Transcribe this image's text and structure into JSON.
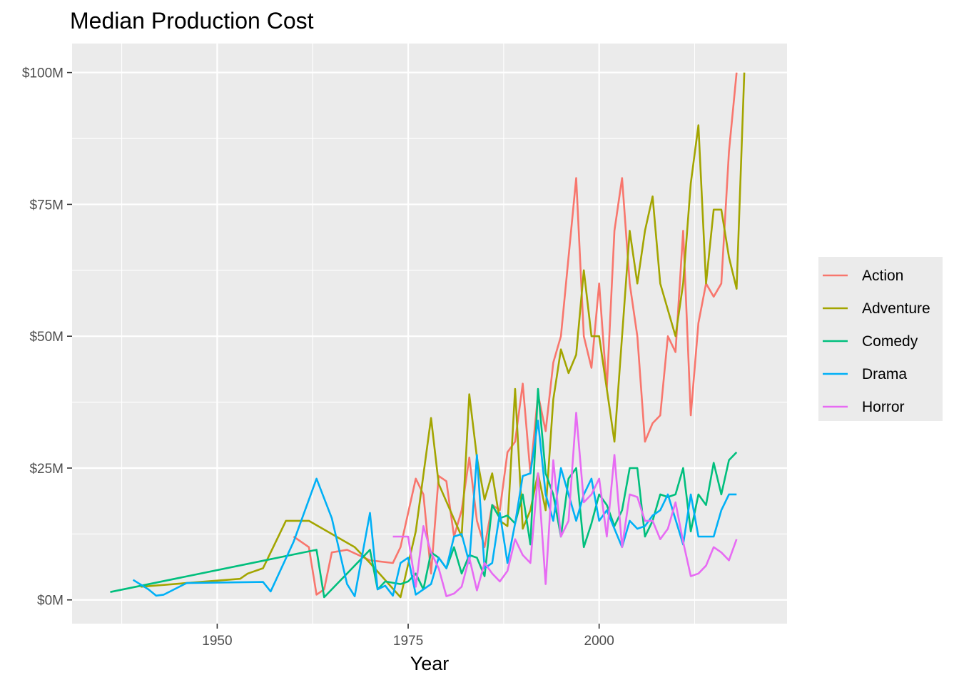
{
  "chart_data": {
    "type": "line",
    "title": "Median Production Cost",
    "xlabel": "Year",
    "ylabel": "",
    "xlim": [
      1931,
      2024.6
    ],
    "ylim": [
      -4.5,
      105.5
    ],
    "x_ticks": [
      1950,
      1975,
      2000
    ],
    "x_minor_ticks": [
      1937.5,
      1962.5,
      1987.5,
      2012.5
    ],
    "y_ticks": [
      0,
      25,
      50,
      75,
      100
    ],
    "y_tick_labels": [
      "$0M",
      "$25M",
      "$50M",
      "$75M",
      "$100M"
    ],
    "y_minor_ticks": [
      12.5,
      37.5,
      62.5,
      87.5
    ],
    "grid": true,
    "legend": "right",
    "series": [
      {
        "name": "Action",
        "color": "#F8766D",
        "points": [
          [
            1960,
            12
          ],
          [
            1962,
            10
          ],
          [
            1963,
            1
          ],
          [
            1964,
            2
          ],
          [
            1965,
            9
          ],
          [
            1967,
            9.5
          ],
          [
            1970,
            7.5
          ],
          [
            1973,
            7
          ],
          [
            1974,
            10
          ],
          [
            1976,
            23
          ],
          [
            1977,
            20
          ],
          [
            1978,
            5
          ],
          [
            1979,
            23.5
          ],
          [
            1980,
            22.5
          ],
          [
            1981,
            12
          ],
          [
            1982,
            17
          ],
          [
            1983,
            27
          ],
          [
            1984,
            15
          ],
          [
            1985,
            10
          ],
          [
            1986,
            18
          ],
          [
            1987,
            17
          ],
          [
            1988,
            28
          ],
          [
            1989,
            30
          ],
          [
            1990,
            41
          ],
          [
            1991,
            24
          ],
          [
            1992,
            39
          ],
          [
            1993,
            32
          ],
          [
            1994,
            45
          ],
          [
            1995,
            50
          ],
          [
            1996,
            65
          ],
          [
            1997,
            80
          ],
          [
            1998,
            50
          ],
          [
            1999,
            44
          ],
          [
            2000,
            60
          ],
          [
            2001,
            40
          ],
          [
            2002,
            70
          ],
          [
            2003,
            80
          ],
          [
            2004,
            60
          ],
          [
            2005,
            50
          ],
          [
            2006,
            30
          ],
          [
            2007,
            33.5
          ],
          [
            2008,
            35
          ],
          [
            2009,
            50
          ],
          [
            2010,
            47
          ],
          [
            2011,
            70
          ],
          [
            2012,
            35
          ],
          [
            2013,
            52.5
          ],
          [
            2014,
            60
          ],
          [
            2015,
            57.5
          ],
          [
            2016,
            60
          ],
          [
            2017,
            85
          ],
          [
            2018,
            100
          ]
        ]
      },
      {
        "name": "Adventure",
        "color": "#A3A500",
        "points": [
          [
            1940,
            2.5
          ],
          [
            1946,
            3.2
          ],
          [
            1953,
            4
          ],
          [
            1954,
            5
          ],
          [
            1956,
            6
          ],
          [
            1959,
            15
          ],
          [
            1962,
            15
          ],
          [
            1968,
            10
          ],
          [
            1970,
            7
          ],
          [
            1974,
            0.5
          ],
          [
            1976,
            13
          ],
          [
            1978,
            34.5
          ],
          [
            1979,
            22
          ],
          [
            1982,
            12
          ],
          [
            1983,
            39
          ],
          [
            1984,
            27
          ],
          [
            1985,
            19
          ],
          [
            1986,
            24
          ],
          [
            1987,
            15
          ],
          [
            1988,
            14
          ],
          [
            1989,
            40
          ],
          [
            1990,
            13.5
          ],
          [
            1991,
            17
          ],
          [
            1992,
            24
          ],
          [
            1993,
            17
          ],
          [
            1994,
            38
          ],
          [
            1995,
            47.5
          ],
          [
            1996,
            43
          ],
          [
            1997,
            46.5
          ],
          [
            1998,
            62.5
          ],
          [
            1999,
            50
          ],
          [
            2000,
            50
          ],
          [
            2001,
            40
          ],
          [
            2002,
            30
          ],
          [
            2003,
            50
          ],
          [
            2004,
            70
          ],
          [
            2005,
            60
          ],
          [
            2006,
            70
          ],
          [
            2007,
            76.5
          ],
          [
            2008,
            60
          ],
          [
            2010,
            50
          ],
          [
            2011,
            60
          ],
          [
            2012,
            79
          ],
          [
            2013,
            90
          ],
          [
            2014,
            60
          ],
          [
            2015,
            74
          ],
          [
            2016,
            74
          ],
          [
            2017,
            65
          ],
          [
            2018,
            59
          ],
          [
            2019,
            100
          ]
        ]
      },
      {
        "name": "Comedy",
        "color": "#00BF7D",
        "points": [
          [
            1936,
            1.5
          ],
          [
            1963,
            9.5
          ],
          [
            1964,
            0.5
          ],
          [
            1970,
            9.5
          ],
          [
            1971,
            2
          ],
          [
            1972,
            3.5
          ],
          [
            1974,
            3
          ],
          [
            1975,
            3.5
          ],
          [
            1976,
            5
          ],
          [
            1977,
            2
          ],
          [
            1978,
            9
          ],
          [
            1979,
            8
          ],
          [
            1980,
            6
          ],
          [
            1981,
            10
          ],
          [
            1982,
            5
          ],
          [
            1983,
            8.5
          ],
          [
            1984,
            8
          ],
          [
            1985,
            4.5
          ],
          [
            1986,
            18
          ],
          [
            1987,
            15.5
          ],
          [
            1988,
            16
          ],
          [
            1989,
            14.5
          ],
          [
            1990,
            20
          ],
          [
            1991,
            10.5
          ],
          [
            1992,
            40
          ],
          [
            1993,
            24
          ],
          [
            1994,
            20
          ],
          [
            1995,
            12
          ],
          [
            1996,
            23
          ],
          [
            1997,
            25
          ],
          [
            1998,
            10
          ],
          [
            1999,
            14.5
          ],
          [
            2000,
            20
          ],
          [
            2001,
            18
          ],
          [
            2002,
            14
          ],
          [
            2003,
            17
          ],
          [
            2004,
            25
          ],
          [
            2005,
            25
          ],
          [
            2006,
            12
          ],
          [
            2007,
            15
          ],
          [
            2008,
            20
          ],
          [
            2009,
            19.5
          ],
          [
            2010,
            20
          ],
          [
            2011,
            25
          ],
          [
            2012,
            13
          ],
          [
            2013,
            20
          ],
          [
            2014,
            18
          ],
          [
            2015,
            26
          ],
          [
            2016,
            20
          ],
          [
            2017,
            26.5
          ],
          [
            2018,
            28
          ]
        ]
      },
      {
        "name": "Drama",
        "color": "#00B0F6",
        "points": [
          [
            1939,
            3.8
          ],
          [
            1941,
            2
          ],
          [
            1942,
            0.8
          ],
          [
            1943,
            1
          ],
          [
            1946,
            3.2
          ],
          [
            1956,
            3.4
          ],
          [
            1957,
            1.6
          ],
          [
            1960,
            11
          ],
          [
            1963,
            23
          ],
          [
            1965,
            15.5
          ],
          [
            1967,
            3
          ],
          [
            1968,
            0.7
          ],
          [
            1970,
            16.5
          ],
          [
            1971,
            2
          ],
          [
            1972,
            2.7
          ],
          [
            1973,
            0.8
          ],
          [
            1974,
            7
          ],
          [
            1975,
            8
          ],
          [
            1976,
            1
          ],
          [
            1978,
            3
          ],
          [
            1979,
            8
          ],
          [
            1980,
            6
          ],
          [
            1981,
            12
          ],
          [
            1982,
            12.5
          ],
          [
            1983,
            7
          ],
          [
            1984,
            27.5
          ],
          [
            1985,
            6
          ],
          [
            1986,
            7
          ],
          [
            1987,
            16.5
          ],
          [
            1988,
            7
          ],
          [
            1989,
            14.5
          ],
          [
            1990,
            23.5
          ],
          [
            1991,
            24
          ],
          [
            1992,
            34
          ],
          [
            1993,
            20
          ],
          [
            1994,
            15
          ],
          [
            1995,
            25
          ],
          [
            1996,
            20
          ],
          [
            1997,
            15
          ],
          [
            1998,
            20
          ],
          [
            1999,
            23
          ],
          [
            2000,
            15
          ],
          [
            2001,
            17
          ],
          [
            2002,
            13.5
          ],
          [
            2003,
            10
          ],
          [
            2004,
            15
          ],
          [
            2005,
            13.5
          ],
          [
            2006,
            14
          ],
          [
            2007,
            16
          ],
          [
            2008,
            17
          ],
          [
            2009,
            20
          ],
          [
            2011,
            10.5
          ],
          [
            2012,
            20
          ],
          [
            2013,
            12
          ],
          [
            2015,
            12
          ],
          [
            2016,
            17
          ],
          [
            2017,
            20
          ],
          [
            2018,
            20
          ]
        ]
      },
      {
        "name": "Horror",
        "color": "#E76BF3",
        "points": [
          [
            1973,
            12
          ],
          [
            1975,
            12
          ],
          [
            1976,
            2.5
          ],
          [
            1977,
            14
          ],
          [
            1978,
            9
          ],
          [
            1979,
            6
          ],
          [
            1980,
            0.7
          ],
          [
            1981,
            1.2
          ],
          [
            1982,
            2.5
          ],
          [
            1983,
            8
          ],
          [
            1984,
            1.8
          ],
          [
            1985,
            7
          ],
          [
            1986,
            5
          ],
          [
            1987,
            3.5
          ],
          [
            1988,
            5.5
          ],
          [
            1989,
            11.5
          ],
          [
            1990,
            8.5
          ],
          [
            1991,
            7
          ],
          [
            1992,
            24
          ],
          [
            1993,
            3
          ],
          [
            1994,
            26.5
          ],
          [
            1995,
            12
          ],
          [
            1996,
            15
          ],
          [
            1997,
            35.5
          ],
          [
            1998,
            18.5
          ],
          [
            1999,
            20
          ],
          [
            2000,
            23
          ],
          [
            2001,
            12
          ],
          [
            2002,
            27.5
          ],
          [
            2003,
            10
          ],
          [
            2004,
            20
          ],
          [
            2005,
            19.5
          ],
          [
            2006,
            15
          ],
          [
            2007,
            15
          ],
          [
            2008,
            11.5
          ],
          [
            2009,
            13.5
          ],
          [
            2010,
            18.5
          ],
          [
            2011,
            11
          ],
          [
            2012,
            4.5
          ],
          [
            2013,
            5
          ],
          [
            2014,
            6.5
          ],
          [
            2015,
            10
          ],
          [
            2016,
            9
          ],
          [
            2017,
            7.5
          ],
          [
            2018,
            11.5
          ]
        ]
      }
    ]
  }
}
